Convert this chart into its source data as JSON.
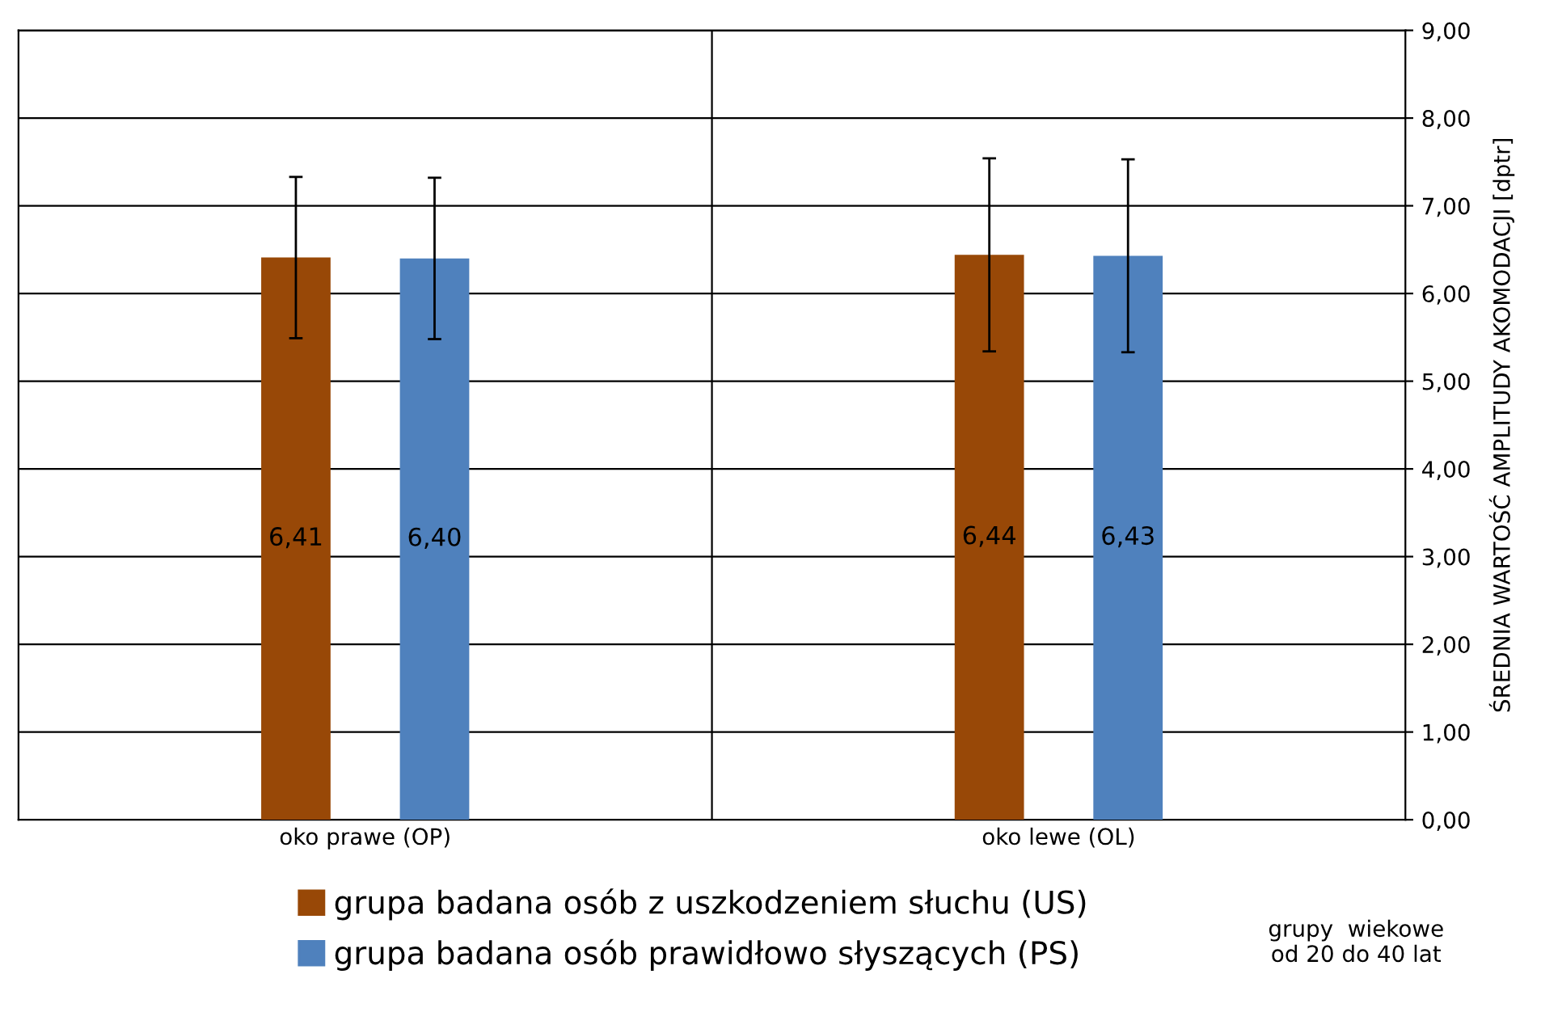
{
  "chart_data": {
    "type": "bar",
    "ylabel": "ŚREDNIA WARTOŚĆ AMPLITUDY AKOMODACJI [dptr]",
    "categories": [
      "oko prawe (OP)",
      "oko lewe (OL)"
    ],
    "series": [
      {
        "name": "grupa badana osób z uszkodzeniem słuchu (US)",
        "color": "#984807",
        "values": [
          6.41,
          6.44
        ],
        "errors": [
          0.92,
          1.1
        ],
        "value_labels": [
          "6,41",
          "6,44"
        ]
      },
      {
        "name": "grupa badana osób prawidłowo słyszących (PS)",
        "color": "#4f81bd",
        "values": [
          6.4,
          6.43
        ],
        "errors": [
          0.92,
          1.1
        ],
        "value_labels": [
          "6,40",
          "6,43"
        ]
      }
    ],
    "ylim": [
      0,
      9
    ],
    "yticks": [
      {
        "value": 0,
        "label": "0,00"
      },
      {
        "value": 1,
        "label": "1,00"
      },
      {
        "value": 2,
        "label": "2,00"
      },
      {
        "value": 3,
        "label": "3,00"
      },
      {
        "value": 4,
        "label": "4,00"
      },
      {
        "value": 5,
        "label": "5,00"
      },
      {
        "value": 6,
        "label": "6,00"
      },
      {
        "value": 7,
        "label": "7,00"
      },
      {
        "value": 8,
        "label": "8,00"
      },
      {
        "value": 9,
        "label": "9,00"
      }
    ],
    "annotations": [
      "grupy  wiekowe\nod 20 do 40 lat"
    ],
    "grid": true,
    "legend": "bottom"
  }
}
